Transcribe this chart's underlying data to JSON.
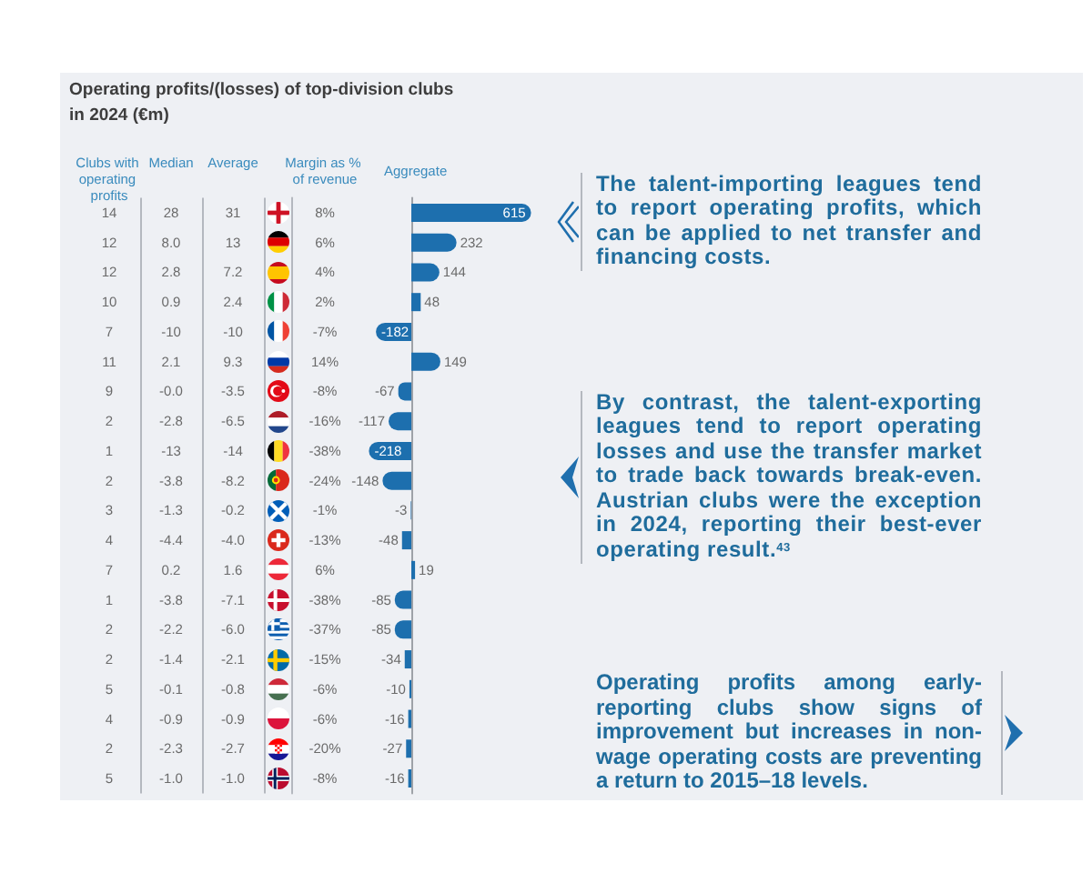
{
  "chart_data": [
    {
      "type": "heatmap",
      "title": "Operating profits/(losses) of top-division clubs in 2024 (€m)",
      "categories": [
        "Clubs with operating profits",
        "Median",
        "Average",
        "Margin as % of revenue"
      ],
      "y_categories": [
        null,
        null,
        null,
        null,
        null,
        null,
        null,
        null,
        null,
        null,
        null,
        null,
        null,
        null,
        null,
        null,
        null,
        null,
        null,
        null
      ],
      "cells": [
        [
          14,
          28,
          31,
          8
        ],
        [
          12,
          8.0,
          13,
          6
        ],
        [
          12,
          2.8,
          7.2,
          4
        ],
        [
          10,
          0.9,
          2.4,
          2
        ],
        [
          7,
          -10,
          -10,
          -7
        ],
        [
          11,
          2.1,
          9.3,
          14
        ],
        [
          9,
          -0.0,
          -3.5,
          -8
        ],
        [
          2,
          -2.8,
          -6.5,
          -16
        ],
        [
          1,
          -13,
          -14,
          -38
        ],
        [
          2,
          -3.8,
          -8.2,
          -24
        ],
        [
          3,
          -1.3,
          -0.2,
          -1
        ],
        [
          4,
          -4.4,
          -4.0,
          -13
        ],
        [
          7,
          0.2,
          1.6,
          6
        ],
        [
          1,
          -3.8,
          -7.1,
          -38
        ],
        [
          2,
          -2.2,
          -6.0,
          -37
        ],
        [
          2,
          -1.4,
          -2.1,
          -15
        ],
        [
          5,
          -0.1,
          -0.8,
          -6
        ],
        [
          4,
          -0.9,
          -0.9,
          -6
        ],
        [
          2,
          -2.3,
          -2.7,
          -20
        ],
        [
          5,
          -1.0,
          -1.0,
          -8
        ]
      ],
      "cell_labels": [
        [
          "14",
          "28",
          "31",
          "8%"
        ],
        [
          "12",
          "8.0",
          "13",
          "6%"
        ],
        [
          "12",
          "2.8",
          "7.2",
          "4%"
        ],
        [
          "10",
          "0.9",
          "2.4",
          "2%"
        ],
        [
          "7",
          "-10",
          "-10",
          "-7%"
        ],
        [
          "11",
          "2.1",
          "9.3",
          "14%"
        ],
        [
          "9",
          "-0.0",
          "-3.5",
          "-8%"
        ],
        [
          "2",
          "-2.8",
          "-6.5",
          "-16%"
        ],
        [
          "1",
          "-13",
          "-14",
          "-38%"
        ],
        [
          "2",
          "-3.8",
          "-8.2",
          "-24%"
        ],
        [
          "3",
          "-1.3",
          "-0.2",
          "-1%"
        ],
        [
          "4",
          "-4.4",
          "-4.0",
          "-13%"
        ],
        [
          "7",
          "0.2",
          "1.6",
          "6%"
        ],
        [
          "1",
          "-3.8",
          "-7.1",
          "-38%"
        ],
        [
          "2",
          "-2.2",
          "-6.0",
          "-37%"
        ],
        [
          "2",
          "-1.4",
          "-2.1",
          "-15%"
        ],
        [
          "5",
          "-0.1",
          "-0.8",
          "-6%"
        ],
        [
          "4",
          "-0.9",
          "-0.9",
          "-6%"
        ],
        [
          "2",
          "-2.3",
          "-2.7",
          "-20%"
        ],
        [
          "5",
          "-1.0",
          "-1.0",
          "-8%"
        ]
      ],
      "grid": "x"
    },
    {
      "type": "bar",
      "orientation": "horizontal",
      "title": "Aggregate",
      "categories": [
        null,
        null,
        null,
        null,
        null,
        null,
        null,
        null,
        null,
        null,
        null,
        null,
        null,
        null,
        null,
        null,
        null,
        null,
        null,
        null
      ],
      "values": [
        615,
        232,
        144,
        48,
        -182,
        149,
        -67,
        -117,
        -218,
        -148,
        -3,
        -48,
        19,
        -85,
        -85,
        -34,
        -10,
        -16,
        -27,
        -16
      ],
      "color": "#1d6fae",
      "data_labels": true,
      "annotations": [
        "The talent-importing leagues tend to report operating profits, which can be applied to net transfer and financing costs.",
        "By contrast, the talent-exporting leagues tend to report operating losses and use the transfer market to trade back towards break-even. Austrian clubs were the exception in 2024, reporting their best-ever operating result.$^{43}$",
        "Operating profits among early-reporting clubs show signs of improvement but increases in non-wage operating costs are preventing a return to 2015–18 levels."
      ]
    }
  ]
}
